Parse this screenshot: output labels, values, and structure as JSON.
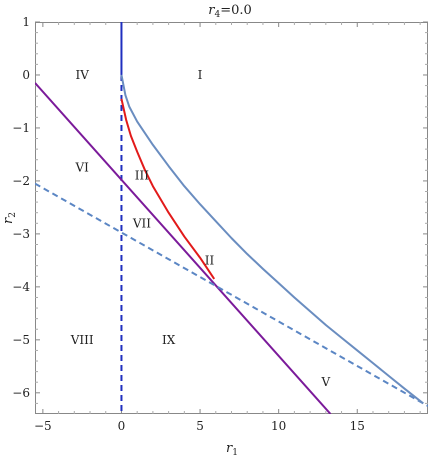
{
  "chart_data": {
    "type": "line",
    "title_base": "r",
    "title_sub": "4",
    "title_rest": "=0.0",
    "xlabel_base": "r",
    "xlabel_sub": "1",
    "ylabel_base": "r",
    "ylabel_sub": "2",
    "xlim": [
      -5.5,
      19.5
    ],
    "ylim": [
      -6.4,
      1.0
    ],
    "x_ticks": [
      -5,
      0,
      5,
      10,
      15
    ],
    "y_ticks": [
      1,
      0,
      -1,
      -2,
      -3,
      -4,
      -5,
      -6
    ],
    "grid": false,
    "frame": true,
    "series": [
      {
        "key": "vertical-solid",
        "color": "#1f2fbf",
        "dash": "solid",
        "points": [
          [
            0,
            1.0
          ],
          [
            0,
            0
          ]
        ]
      },
      {
        "key": "vertical-dashed",
        "color": "#1f2fbf",
        "dash": "dashed",
        "points": [
          [
            0,
            0
          ],
          [
            0,
            -6.4
          ]
        ]
      },
      {
        "key": "purple-line",
        "color": "#7b1a9a",
        "dash": "solid",
        "points": [
          [
            -5.5,
            -0.15
          ],
          [
            13.3,
            -6.4
          ]
        ]
      },
      {
        "key": "blue-dashed-line",
        "color": "#5b86c4",
        "dash": "dashed",
        "points": [
          [
            -5.5,
            -2.05
          ],
          [
            19.5,
            -6.25
          ]
        ]
      },
      {
        "key": "blue-curve",
        "color": "#6a8dc0",
        "dash": "solid",
        "points": [
          [
            0,
            0
          ],
          [
            0.25,
            -0.38
          ],
          [
            0.5,
            -0.6
          ],
          [
            1,
            -0.88
          ],
          [
            2,
            -1.32
          ],
          [
            3,
            -1.72
          ],
          [
            4,
            -2.1
          ],
          [
            5,
            -2.44
          ],
          [
            6,
            -2.76
          ],
          [
            7,
            -3.08
          ],
          [
            8,
            -3.38
          ],
          [
            9,
            -3.66
          ],
          [
            10,
            -3.93
          ],
          [
            11,
            -4.2
          ],
          [
            12,
            -4.46
          ],
          [
            13,
            -4.72
          ],
          [
            14,
            -4.96
          ],
          [
            15,
            -5.2
          ],
          [
            16,
            -5.44
          ],
          [
            17,
            -5.68
          ],
          [
            18,
            -5.92
          ],
          [
            19.2,
            -6.2
          ]
        ]
      },
      {
        "key": "red-curve",
        "color": "#e21a1a",
        "dash": "solid",
        "points": [
          [
            0,
            -0.45
          ],
          [
            0.3,
            -0.85
          ],
          [
            0.6,
            -1.15
          ],
          [
            1,
            -1.45
          ],
          [
            1.5,
            -1.8
          ],
          [
            2,
            -2.1
          ],
          [
            3,
            -2.6
          ],
          [
            4,
            -3.05
          ],
          [
            5,
            -3.45
          ],
          [
            5.9,
            -3.85
          ]
        ]
      }
    ],
    "regions": [
      {
        "label": "IV",
        "x": -2.5,
        "y": 0.0
      },
      {
        "label": "I",
        "x": 5.0,
        "y": 0.0
      },
      {
        "label": "VI",
        "x": -2.5,
        "y": -1.75
      },
      {
        "label": "III",
        "x": 1.3,
        "y": -1.9
      },
      {
        "label": "VII",
        "x": 1.3,
        "y": -2.8
      },
      {
        "label": "II",
        "x": 5.6,
        "y": -3.5
      },
      {
        "label": "VIII",
        "x": -2.5,
        "y": -5.0
      },
      {
        "label": "IX",
        "x": 3.0,
        "y": -5.0
      },
      {
        "label": "V",
        "x": 13.0,
        "y": -5.8
      }
    ]
  }
}
